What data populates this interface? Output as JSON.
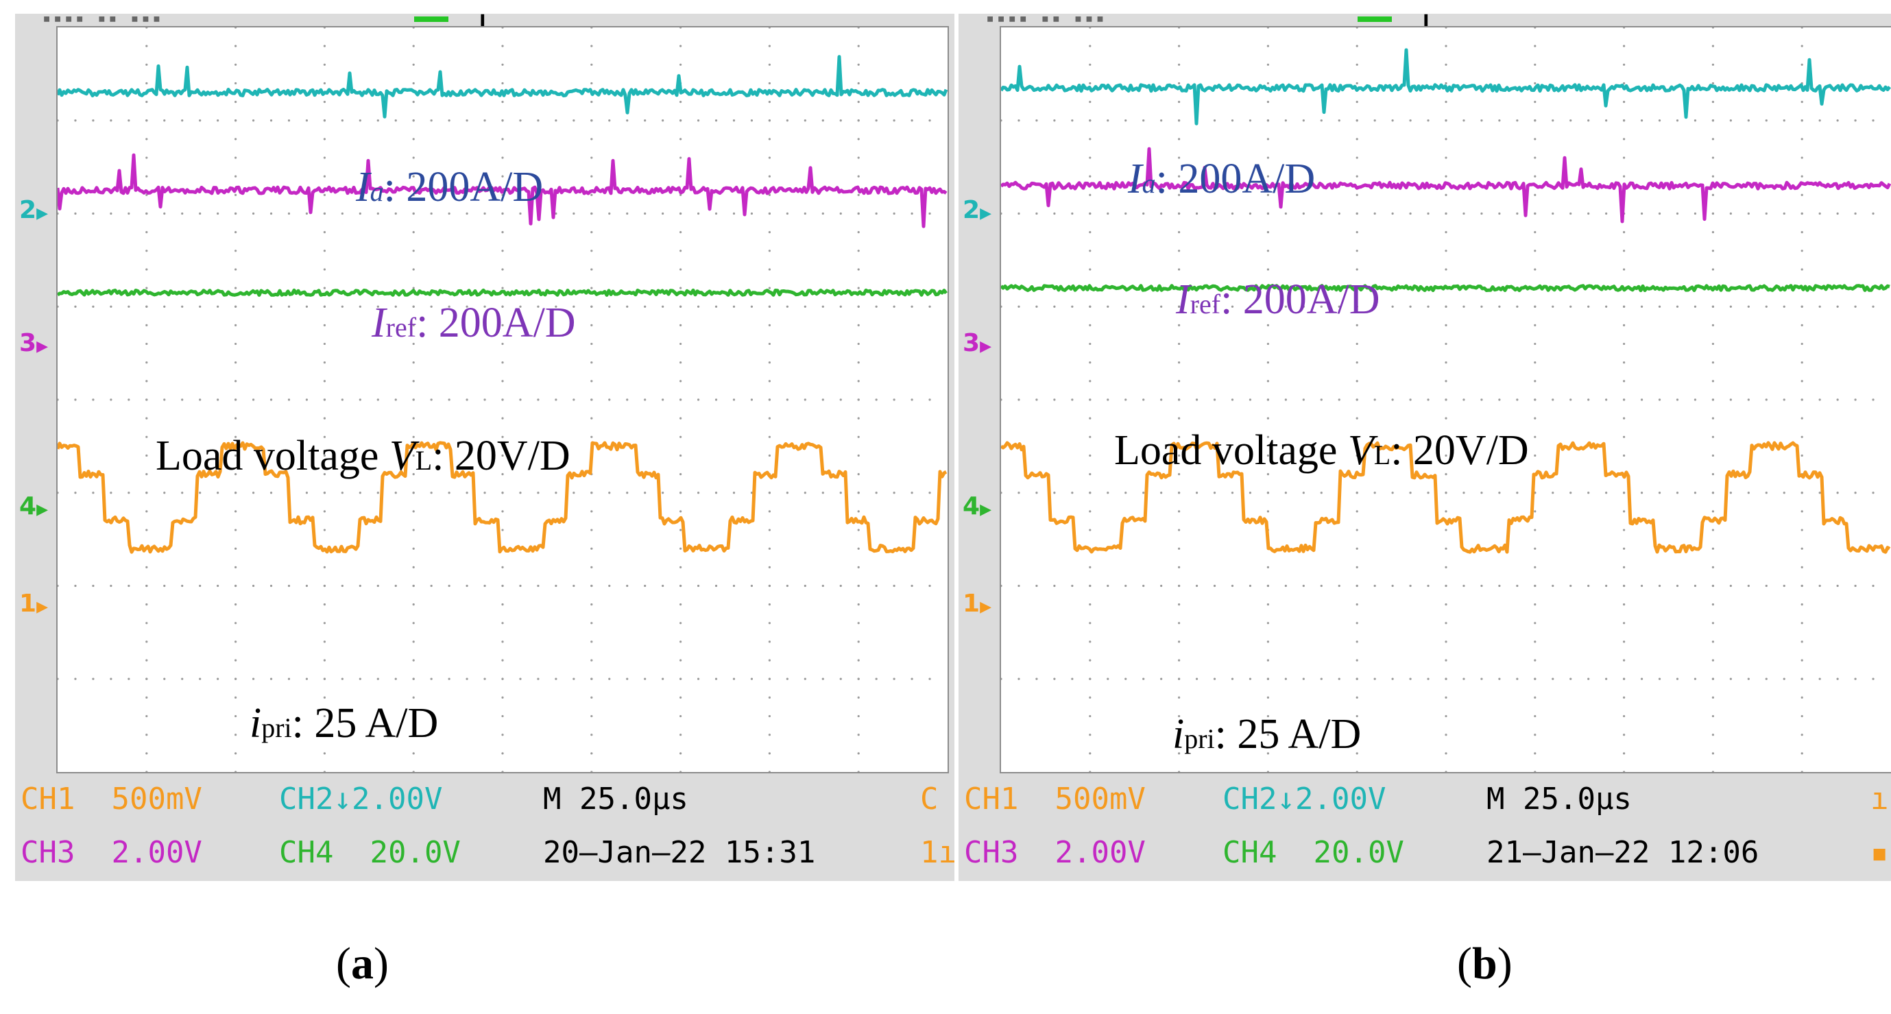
{
  "chart_data": [
    {
      "type": "line",
      "panel": "a",
      "caption": "(a)",
      "x_per_division_us": 25.0,
      "x_divisions": 10,
      "y_divisions": 8,
      "series": [
        {
          "name": "CH2",
          "label_var": "I",
          "label_sub": "a",
          "label_rest": ": 200A/D",
          "scale_text": "2.00V",
          "color": "#1fb5b5",
          "level_div": 0.7,
          "shape": "flat-spiky"
        },
        {
          "name": "CH3",
          "label_var": "I",
          "label_sub": "ref",
          "label_rest": ": 200A/D",
          "scale_text": "2.00V",
          "color": "#c428c4",
          "level_div": 1.75,
          "shape": "flat-spiky"
        },
        {
          "name": "CH4",
          "label_prefix": "Load voltage ",
          "label_var": "V",
          "label_sub": "L",
          "label_rest": ": 20V/D",
          "scale_text": "20.0V",
          "color": "#2fb52f",
          "level_div": 2.85,
          "shape": "flat"
        },
        {
          "name": "CH1",
          "label_var": "i",
          "label_sub": "pri",
          "label_rest": ": 25 A/D",
          "scale_text": "500mV",
          "color": "#f59a1f",
          "level_div": 5.05,
          "shape": "stepped-square",
          "amplitude_div": 0.55,
          "periods": 4.8
        }
      ]
    },
    {
      "type": "line",
      "panel": "b",
      "caption": "(b)",
      "x_per_division_us": 25.0,
      "x_divisions": 10,
      "y_divisions": 8,
      "series": [
        {
          "name": "CH2",
          "label_var": "I",
          "label_sub": "a",
          "label_rest": ": 200A/D",
          "scale_text": "2.00V",
          "color": "#1fb5b5",
          "level_div": 0.65,
          "shape": "flat-spiky"
        },
        {
          "name": "CH3",
          "label_var": "I",
          "label_sub": "ref",
          "label_rest": ": 200A/D",
          "scale_text": "2.00V",
          "color": "#c428c4",
          "level_div": 1.7,
          "shape": "flat-spiky"
        },
        {
          "name": "CH4",
          "label_prefix": "Load voltage ",
          "label_var": "V",
          "label_sub": "L",
          "label_rest": ": 20V/D",
          "scale_text": "20.0V",
          "color": "#2fb52f",
          "level_div": 2.8,
          "shape": "flat"
        },
        {
          "name": "CH1",
          "label_var": "i",
          "label_sub": "pri",
          "label_rest": ": 25 A/D",
          "scale_text": "500mV",
          "color": "#f59a1f",
          "level_div": 5.05,
          "shape": "stepped-square",
          "amplitude_div": 0.55,
          "periods": 4.6
        }
      ]
    }
  ],
  "panels": [
    {
      "markers": {
        "m2": "2",
        "m3": "3",
        "m4": "4",
        "m1": "1",
        "arrow": "▶",
        "trigger": "↓",
        "dots": "▪▪▪▪   ▪▪ ▪▪▪"
      },
      "status": {
        "ch1": "CH1",
        "ch1_val": "500mV",
        "ch2": "CH2",
        "ch2_val": "2.00V",
        "ch2_arrow": "↓",
        "time": "M 25.0µs",
        "ch3": "CH3",
        "ch3_val": "2.00V",
        "ch4": "CH4",
        "ch4_val": "20.0V",
        "date": "20–Jan–22 15:31",
        "edge1": "C",
        "edge2": "1ı"
      },
      "caption_letter": "a"
    },
    {
      "markers": {
        "m2": "2",
        "m3": "3",
        "m4": "4",
        "m1": "1",
        "arrow": "▶",
        "trigger": "↓",
        "dots": "▪▪▪▪   ▪▪ ▪▪▪"
      },
      "status": {
        "ch1": "CH1",
        "ch1_val": "500mV",
        "ch2": "CH2",
        "ch2_val": "2.00V",
        "ch2_arrow": "↓",
        "time": "M 25.0µs",
        "ch3": "CH3",
        "ch3_val": "2.00V",
        "ch4": "CH4",
        "ch4_val": "20.0V",
        "date": "21–Jan–22 12:06",
        "edge1": "ı",
        "edge2": "▪"
      },
      "caption_letter": "b"
    }
  ],
  "colors": {
    "ch1": "#f59a1f",
    "ch2": "#1fb5b5",
    "ch3": "#c428c4",
    "ch4": "#2fb52f",
    "label_blue": "#2c4a9c",
    "label_purple": "#7e35b7"
  }
}
